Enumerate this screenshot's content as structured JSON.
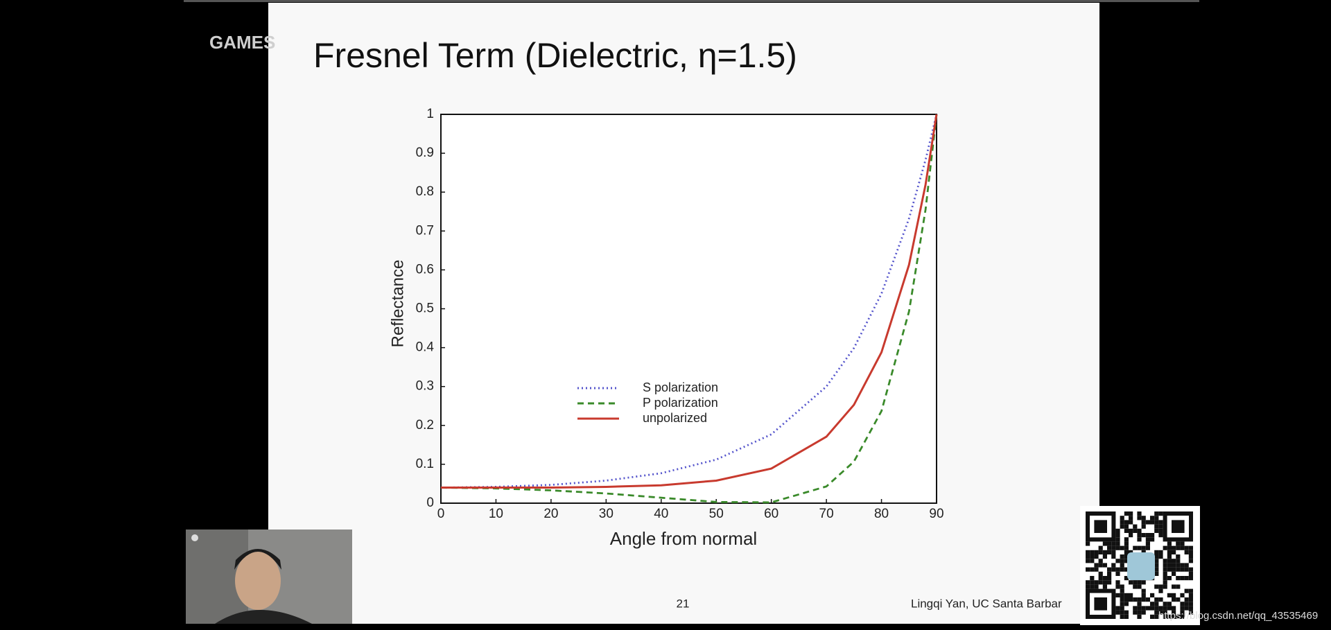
{
  "watermark": "GAMES",
  "slide": {
    "page_number": "21",
    "author": "Lingqi Yan, UC Santa Barbar"
  },
  "url_watermark": "https://blog.csdn.net/qq_43535469",
  "chart_data": {
    "type": "line",
    "title": "Fresnel Term (Dielectric, η=1.5)",
    "x_label": "Angle from normal",
    "y_label": "Reflectance",
    "x": [
      0,
      10,
      20,
      30,
      40,
      50,
      60,
      70,
      75,
      80,
      85,
      88,
      90
    ],
    "series": [
      {
        "name": "S polarization",
        "color": "#5555cc",
        "linestyle": "dotted",
        "values": [
          0.04,
          0.042,
          0.047,
          0.058,
          0.077,
          0.112,
          0.177,
          0.3,
          0.399,
          0.539,
          0.732,
          0.883,
          1
        ]
      },
      {
        "name": "P polarization",
        "color": "#3a8a2a",
        "linestyle": "dashed",
        "values": [
          0.04,
          0.038,
          0.033,
          0.025,
          0.014,
          0.003,
          0.002,
          0.043,
          0.107,
          0.237,
          0.493,
          0.755,
          1
        ]
      },
      {
        "name": "unpolarized",
        "color": "#c83a2e",
        "linestyle": "solid",
        "values": [
          0.04,
          0.04,
          0.04,
          0.042,
          0.046,
          0.058,
          0.089,
          0.171,
          0.253,
          0.388,
          0.613,
          0.819,
          1
        ]
      }
    ],
    "xlim": [
      0,
      90
    ],
    "xticks": [
      0,
      10,
      20,
      30,
      40,
      50,
      60,
      70,
      80,
      90
    ],
    "ylim": [
      0,
      1
    ],
    "yticks": [
      0,
      0.1,
      0.2,
      0.3,
      0.4,
      0.5,
      0.6,
      0.7,
      0.8,
      0.9,
      1
    ],
    "grid": false
  }
}
